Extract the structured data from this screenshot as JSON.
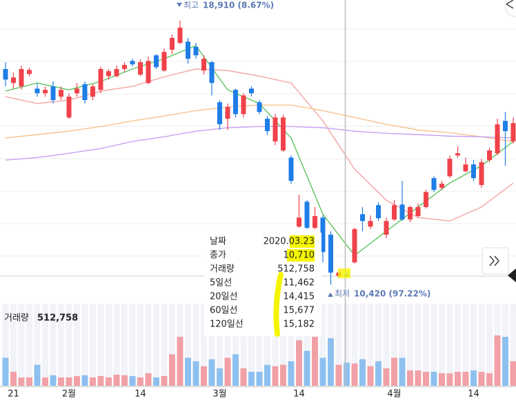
{
  "chart_data": {
    "type": "candlestick",
    "categories": [
      null,
      "21",
      null,
      null,
      null,
      null,
      null,
      null,
      "2월",
      null,
      null,
      null,
      null,
      null,
      null,
      null,
      null,
      "14",
      null,
      null,
      null,
      null,
      null,
      null,
      null,
      null,
      null,
      "3월",
      null,
      null,
      null,
      null,
      null,
      null,
      null,
      null,
      null,
      "14",
      null,
      null,
      null,
      null,
      null,
      null,
      null,
      null,
      null,
      null,
      null,
      "4월",
      null,
      null,
      null,
      null,
      null,
      null,
      null,
      null,
      null,
      "14",
      null,
      null,
      null,
      null,
      null
    ],
    "candles": {
      "open": [
        17360,
        16910,
        16800,
        17200,
        16730,
        16580,
        16800,
        16470,
        15800,
        16580,
        16870,
        16470,
        16690,
        17130,
        17130,
        17360,
        17620,
        17180,
        16910,
        17800,
        17310,
        17980,
        18200,
        18240,
        18070,
        17310,
        17580,
        16290,
        15760,
        16690,
        15910,
        16730,
        16290,
        15760,
        15030,
        14740,
        14510,
        12290,
        13090,
        12250,
        12580,
        12030,
        10700,
        10740,
        11140,
        12690,
        12290,
        12980,
        12030,
        12520,
        13000,
        12520,
        12630,
        12920,
        13850,
        13540,
        13910,
        14580,
        14070,
        14290,
        13630,
        14430,
        14650,
        15690,
        15030
      ],
      "high": [
        17580,
        17250,
        17470,
        17400,
        16910,
        16800,
        16960,
        16800,
        16580,
        16910,
        16960,
        16870,
        17440,
        17360,
        17470,
        17580,
        17690,
        17670,
        17760,
        17840,
        18020,
        18470,
        18910,
        18360,
        18200,
        17800,
        17620,
        16360,
        16250,
        16730,
        16580,
        16800,
        16360,
        15850,
        15910,
        15890,
        14580,
        13320,
        13140,
        12920,
        12650,
        12140,
        10870,
        10810,
        12250,
        12920,
        12650,
        13070,
        12580,
        13140,
        13760,
        12960,
        13030,
        13470,
        13910,
        13760,
        14580,
        14870,
        14510,
        14430,
        14470,
        14830,
        15760,
        15980,
        15800
      ],
      "low": [
        16800,
        16730,
        16690,
        17130,
        16470,
        16470,
        16250,
        16360,
        15760,
        16470,
        16250,
        16360,
        16580,
        17020,
        17090,
        17250,
        17440,
        17130,
        16870,
        17360,
        17270,
        17840,
        18160,
        17530,
        17690,
        17180,
        16510,
        15400,
        15400,
        15800,
        15800,
        16470,
        15910,
        15230,
        14910,
        14690,
        13670,
        12250,
        12210,
        12210,
        11140,
        10420,
        10650,
        10700,
        11100,
        12140,
        12210,
        12470,
        11920,
        12470,
        12470,
        12430,
        12580,
        12870,
        13400,
        13470,
        13850,
        14510,
        14030,
        13760,
        13540,
        14360,
        14580,
        14250,
        14960
      ],
      "close": [
        17020,
        17090,
        17360,
        17330,
        16580,
        16690,
        16360,
        16690,
        16470,
        16730,
        16360,
        16800,
        17360,
        17290,
        17360,
        17490,
        17510,
        17580,
        17620,
        17420,
        17910,
        18360,
        18690,
        17690,
        17800,
        17690,
        16910,
        15580,
        16140,
        15910,
        16510,
        16580,
        15980,
        15360,
        15800,
        15800,
        13760,
        12580,
        12250,
        12630,
        11470,
        10810,
        10810,
        10710,
        12210,
        12470,
        12470,
        12560,
        12470,
        12980,
        12520,
        12920,
        12920,
        13400,
        13470,
        13670,
        14470,
        14650,
        14290,
        13850,
        14360,
        14740,
        15580,
        15360,
        15620
      ]
    },
    "volume": [
      620000,
      310000,
      186000,
      186000,
      465000,
      186000,
      233000,
      186000,
      186000,
      217000,
      233000,
      186000,
      217000,
      186000,
      248000,
      233000,
      217000,
      186000,
      279000,
      186000,
      217000,
      698000,
      1085000,
      620000,
      543000,
      434000,
      589000,
      388000,
      620000,
      698000,
      388000,
      310000,
      310000,
      465000,
      434000,
      465000,
      543000,
      1008000,
      775000,
      1085000,
      620000,
      1054000,
      465000,
      512758,
      496000,
      589000,
      434000,
      543000,
      388000,
      620000,
      620000,
      341000,
      341000,
      310000,
      310000,
      279000,
      279000,
      310000,
      310000,
      341000,
      310000,
      279000,
      1116000,
      1085000,
      543000
    ],
    "ylim": [
      9810,
      19580
    ],
    "volume_ylim": [
      0,
      1131000
    ],
    "up_color": "#f0424a",
    "down_color": "#1f7de6",
    "up_volume_color": "#f0a0a6",
    "down_volume_color": "#8ec0ef",
    "moving_averages": [
      {
        "color": "#5dc45d",
        "x": [
          0,
          4,
          8,
          12,
          16,
          20,
          24,
          28,
          32,
          36,
          40,
          44,
          48,
          52,
          56,
          60,
          64
        ],
        "values": [
          16650,
          16910,
          16690,
          16960,
          17360,
          17690,
          18110,
          16690,
          16250,
          15140,
          12690,
          11360,
          12140,
          12920,
          13690,
          14250,
          15030
        ]
      },
      {
        "color": "#f4a3a3",
        "x": [
          0,
          4,
          8,
          12,
          16,
          20,
          24,
          28,
          32,
          36,
          40,
          44,
          48,
          52,
          56,
          60,
          64
        ],
        "values": [
          16470,
          16250,
          16360,
          16650,
          16800,
          17110,
          17360,
          17310,
          17130,
          16910,
          15690,
          14140,
          13140,
          12580,
          12470,
          12920,
          13690
        ]
      },
      {
        "color": "#f9c28d",
        "x": [
          0,
          4,
          8,
          12,
          16,
          20,
          24,
          28,
          32,
          36,
          40,
          44,
          48,
          52,
          56,
          60,
          64
        ],
        "values": [
          15140,
          15250,
          15360,
          15510,
          15690,
          15850,
          16020,
          16140,
          16200,
          16200,
          16020,
          15800,
          15580,
          15400,
          15310,
          15180,
          15030
        ]
      },
      {
        "color": "#c6a0f5",
        "x": [
          0,
          4,
          8,
          12,
          16,
          20,
          24,
          28,
          32,
          36,
          40,
          44,
          48,
          52,
          56,
          60,
          64
        ],
        "values": [
          14430,
          14510,
          14650,
          14800,
          15030,
          15180,
          15360,
          15470,
          15510,
          15510,
          15470,
          15360,
          15290,
          15250,
          15200,
          15180,
          15140
        ]
      }
    ],
    "crosshair_index": 43,
    "high_label": "최고",
    "high_text": "18,910 (8.67%)",
    "low_label": "최저",
    "low_text": "10,420 (97.22%)",
    "volume_label": "거래량",
    "volume_text": "512,758",
    "tooltip": [
      {
        "label": "날짜",
        "value": "2020.03.23",
        "color": "#222222"
      },
      {
        "label": "종가",
        "value": "10,710",
        "color": "#222222"
      },
      {
        "label": "거래량",
        "value": "512,758",
        "color": "#222222"
      },
      {
        "label": "5일선",
        "value": "11,462",
        "color": "#3cb43c"
      },
      {
        "label": "20일선",
        "value": "14,415",
        "color": "#f0424a"
      },
      {
        "label": "60일선",
        "value": "15,677",
        "color": "#f5953d"
      },
      {
        "label": "120일선",
        "value": "15,182",
        "color": "#9b59f0"
      }
    ]
  }
}
